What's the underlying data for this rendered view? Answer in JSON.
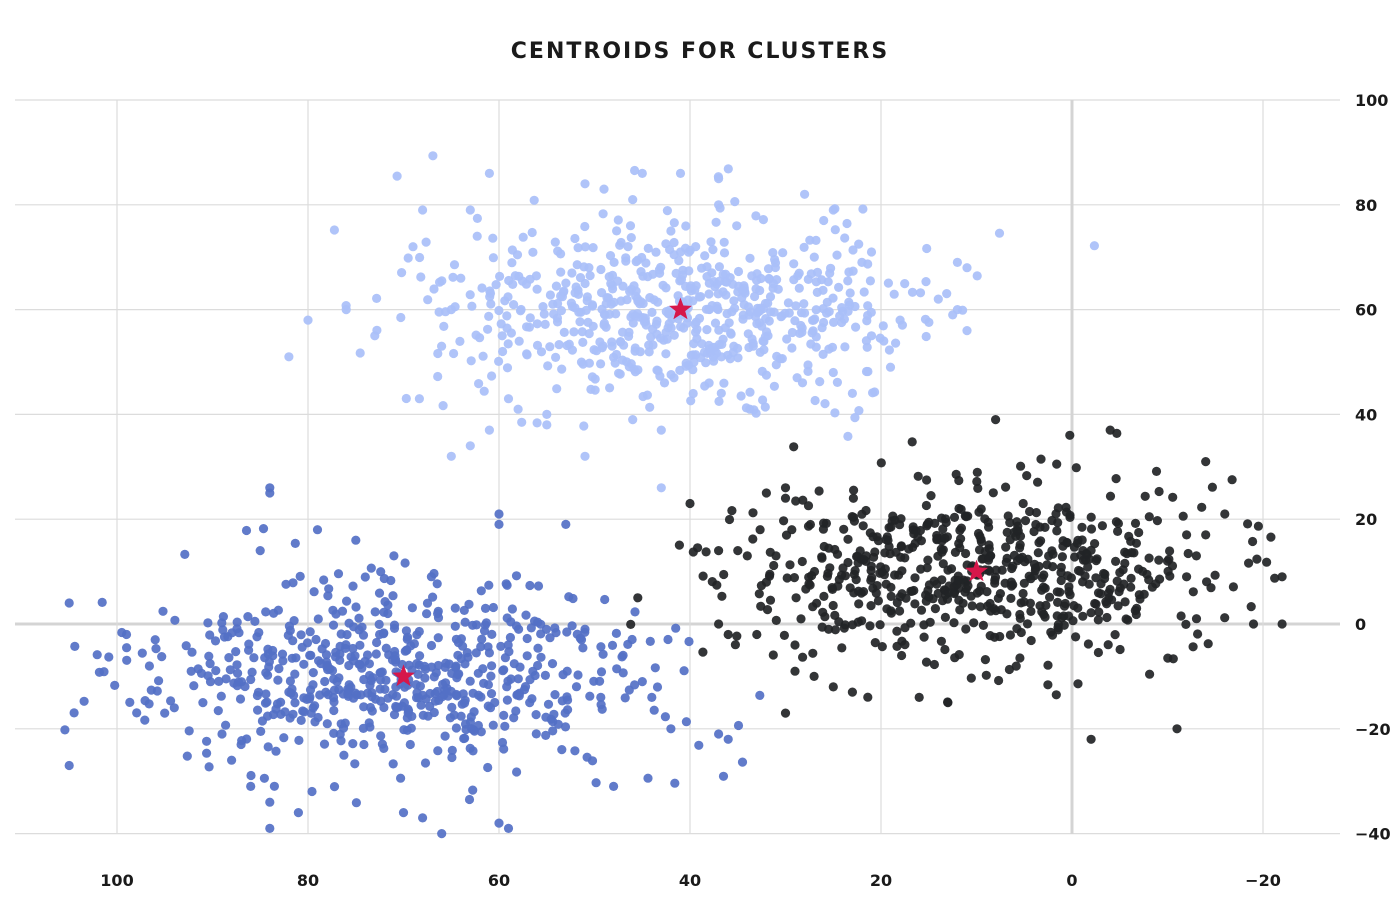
{
  "chart_data": {
    "type": "scatter",
    "title": "CENTROIDS FOR CLUSTERS",
    "xlabel": "",
    "ylabel": "",
    "x_axis_reversed": true,
    "y_axis_position": "right",
    "xlim": [
      -22,
      105
    ],
    "ylim": [
      -42,
      100
    ],
    "x_ticks": [
      {
        "value": 100,
        "label": "100"
      },
      {
        "value": 80,
        "label": "80"
      },
      {
        "value": 60,
        "label": "60"
      },
      {
        "value": 40,
        "label": "40"
      },
      {
        "value": 20,
        "label": "20"
      },
      {
        "value": 0,
        "label": "0"
      },
      {
        "value": -20,
        "label": "−20"
      }
    ],
    "y_ticks": [
      {
        "value": 100,
        "label": "100"
      },
      {
        "value": 80,
        "label": "80"
      },
      {
        "value": 60,
        "label": "60"
      },
      {
        "value": 40,
        "label": "40"
      },
      {
        "value": 20,
        "label": "20"
      },
      {
        "value": 0,
        "label": "0"
      },
      {
        "value": -20,
        "label": "−20"
      },
      {
        "value": -40,
        "label": "−40"
      }
    ],
    "grid": true,
    "legend": "none",
    "centroid_color": "#d6174a",
    "centroid_marker": "star",
    "series": [
      {
        "color": "#a9bff8",
        "centroid": [
          41,
          60
        ],
        "spread": [
          12.5,
          8.5
        ],
        "n": 650,
        "seed": 11,
        "points": [
          [
            41,
            86
          ],
          [
            45,
            86
          ],
          [
            37,
            85
          ],
          [
            61,
            86
          ],
          [
            28,
            82
          ],
          [
            25,
            79
          ],
          [
            37,
            80
          ],
          [
            49,
            83
          ],
          [
            51,
            84
          ],
          [
            46,
            81
          ],
          [
            26,
            77
          ],
          [
            63,
            79
          ],
          [
            42,
            75
          ],
          [
            68,
            79
          ],
          [
            41,
            71
          ],
          [
            21,
            71
          ],
          [
            22,
            69
          ],
          [
            64,
            66
          ],
          [
            69,
            72
          ],
          [
            11,
            68
          ],
          [
            12,
            69
          ],
          [
            14,
            62
          ],
          [
            12,
            60
          ],
          [
            76,
            60
          ],
          [
            18,
            58
          ],
          [
            21,
            55
          ],
          [
            73,
            55
          ],
          [
            65,
            60
          ],
          [
            11,
            56
          ],
          [
            80,
            58
          ],
          [
            82,
            51
          ],
          [
            25,
            48
          ],
          [
            19,
            49
          ],
          [
            23,
            44
          ],
          [
            38,
            46
          ],
          [
            59,
            43
          ],
          [
            46,
            39
          ],
          [
            55,
            40
          ],
          [
            43,
            37
          ],
          [
            61,
            37
          ],
          [
            43,
            26
          ],
          [
            58,
            41
          ],
          [
            63,
            34
          ],
          [
            65,
            32
          ],
          [
            51,
            32
          ],
          [
            55,
            38
          ]
        ]
      },
      {
        "color": "#5470c6",
        "centroid": [
          70,
          -10
        ],
        "spread": [
          13,
          8.5
        ],
        "n": 620,
        "seed": 23,
        "points": [
          [
            105,
            4
          ],
          [
            105,
            -27
          ],
          [
            99,
            -2
          ],
          [
            96,
            -3
          ],
          [
            94,
            -16
          ],
          [
            95,
            -17
          ],
          [
            91,
            -15
          ],
          [
            89,
            -21
          ],
          [
            87,
            -23
          ],
          [
            88,
            -26
          ],
          [
            86,
            -31
          ],
          [
            84,
            -34
          ],
          [
            84,
            -39
          ],
          [
            82,
            -13
          ],
          [
            85,
            14
          ],
          [
            84,
            25
          ],
          [
            84,
            26
          ],
          [
            79,
            18
          ],
          [
            75,
            16
          ],
          [
            71,
            13
          ],
          [
            60,
            19
          ],
          [
            60,
            21
          ],
          [
            53,
            19
          ],
          [
            51,
            -1
          ],
          [
            47,
            -6
          ],
          [
            45,
            -11
          ],
          [
            44,
            -14
          ],
          [
            48,
            -31
          ],
          [
            42,
            -20
          ],
          [
            37,
            -21
          ],
          [
            36,
            -22
          ],
          [
            66,
            -40
          ],
          [
            59,
            -39
          ],
          [
            60,
            -38
          ],
          [
            70,
            -36
          ],
          [
            81,
            -36
          ],
          [
            68,
            -37
          ]
        ]
      },
      {
        "color": "#222426",
        "centroid": [
          10,
          10
        ],
        "spread": [
          12.5,
          8.5
        ],
        "n": 630,
        "seed": 37,
        "points": [
          [
            8,
            39
          ],
          [
            -4,
            37
          ],
          [
            -14,
            31
          ],
          [
            -16,
            21
          ],
          [
            -14,
            17
          ],
          [
            -12,
            17
          ],
          [
            -10,
            12
          ],
          [
            -12,
            9
          ],
          [
            -19,
            0
          ],
          [
            -22,
            0
          ],
          [
            -22,
            9
          ],
          [
            -11,
            -20
          ],
          [
            -2,
            -22
          ],
          [
            40,
            23
          ],
          [
            30,
            26
          ],
          [
            32,
            25
          ],
          [
            30,
            24
          ],
          [
            34,
            13
          ],
          [
            35,
            14
          ],
          [
            32,
            8
          ],
          [
            37,
            0
          ],
          [
            36,
            -2
          ],
          [
            29,
            -4
          ],
          [
            29,
            -9
          ],
          [
            30,
            -17
          ],
          [
            27,
            -10
          ],
          [
            25,
            -12
          ],
          [
            23,
            -13
          ],
          [
            13,
            -15
          ],
          [
            16,
            -14
          ],
          [
            31,
            13
          ],
          [
            33,
            -2
          ],
          [
            37,
            14
          ]
        ]
      }
    ]
  }
}
